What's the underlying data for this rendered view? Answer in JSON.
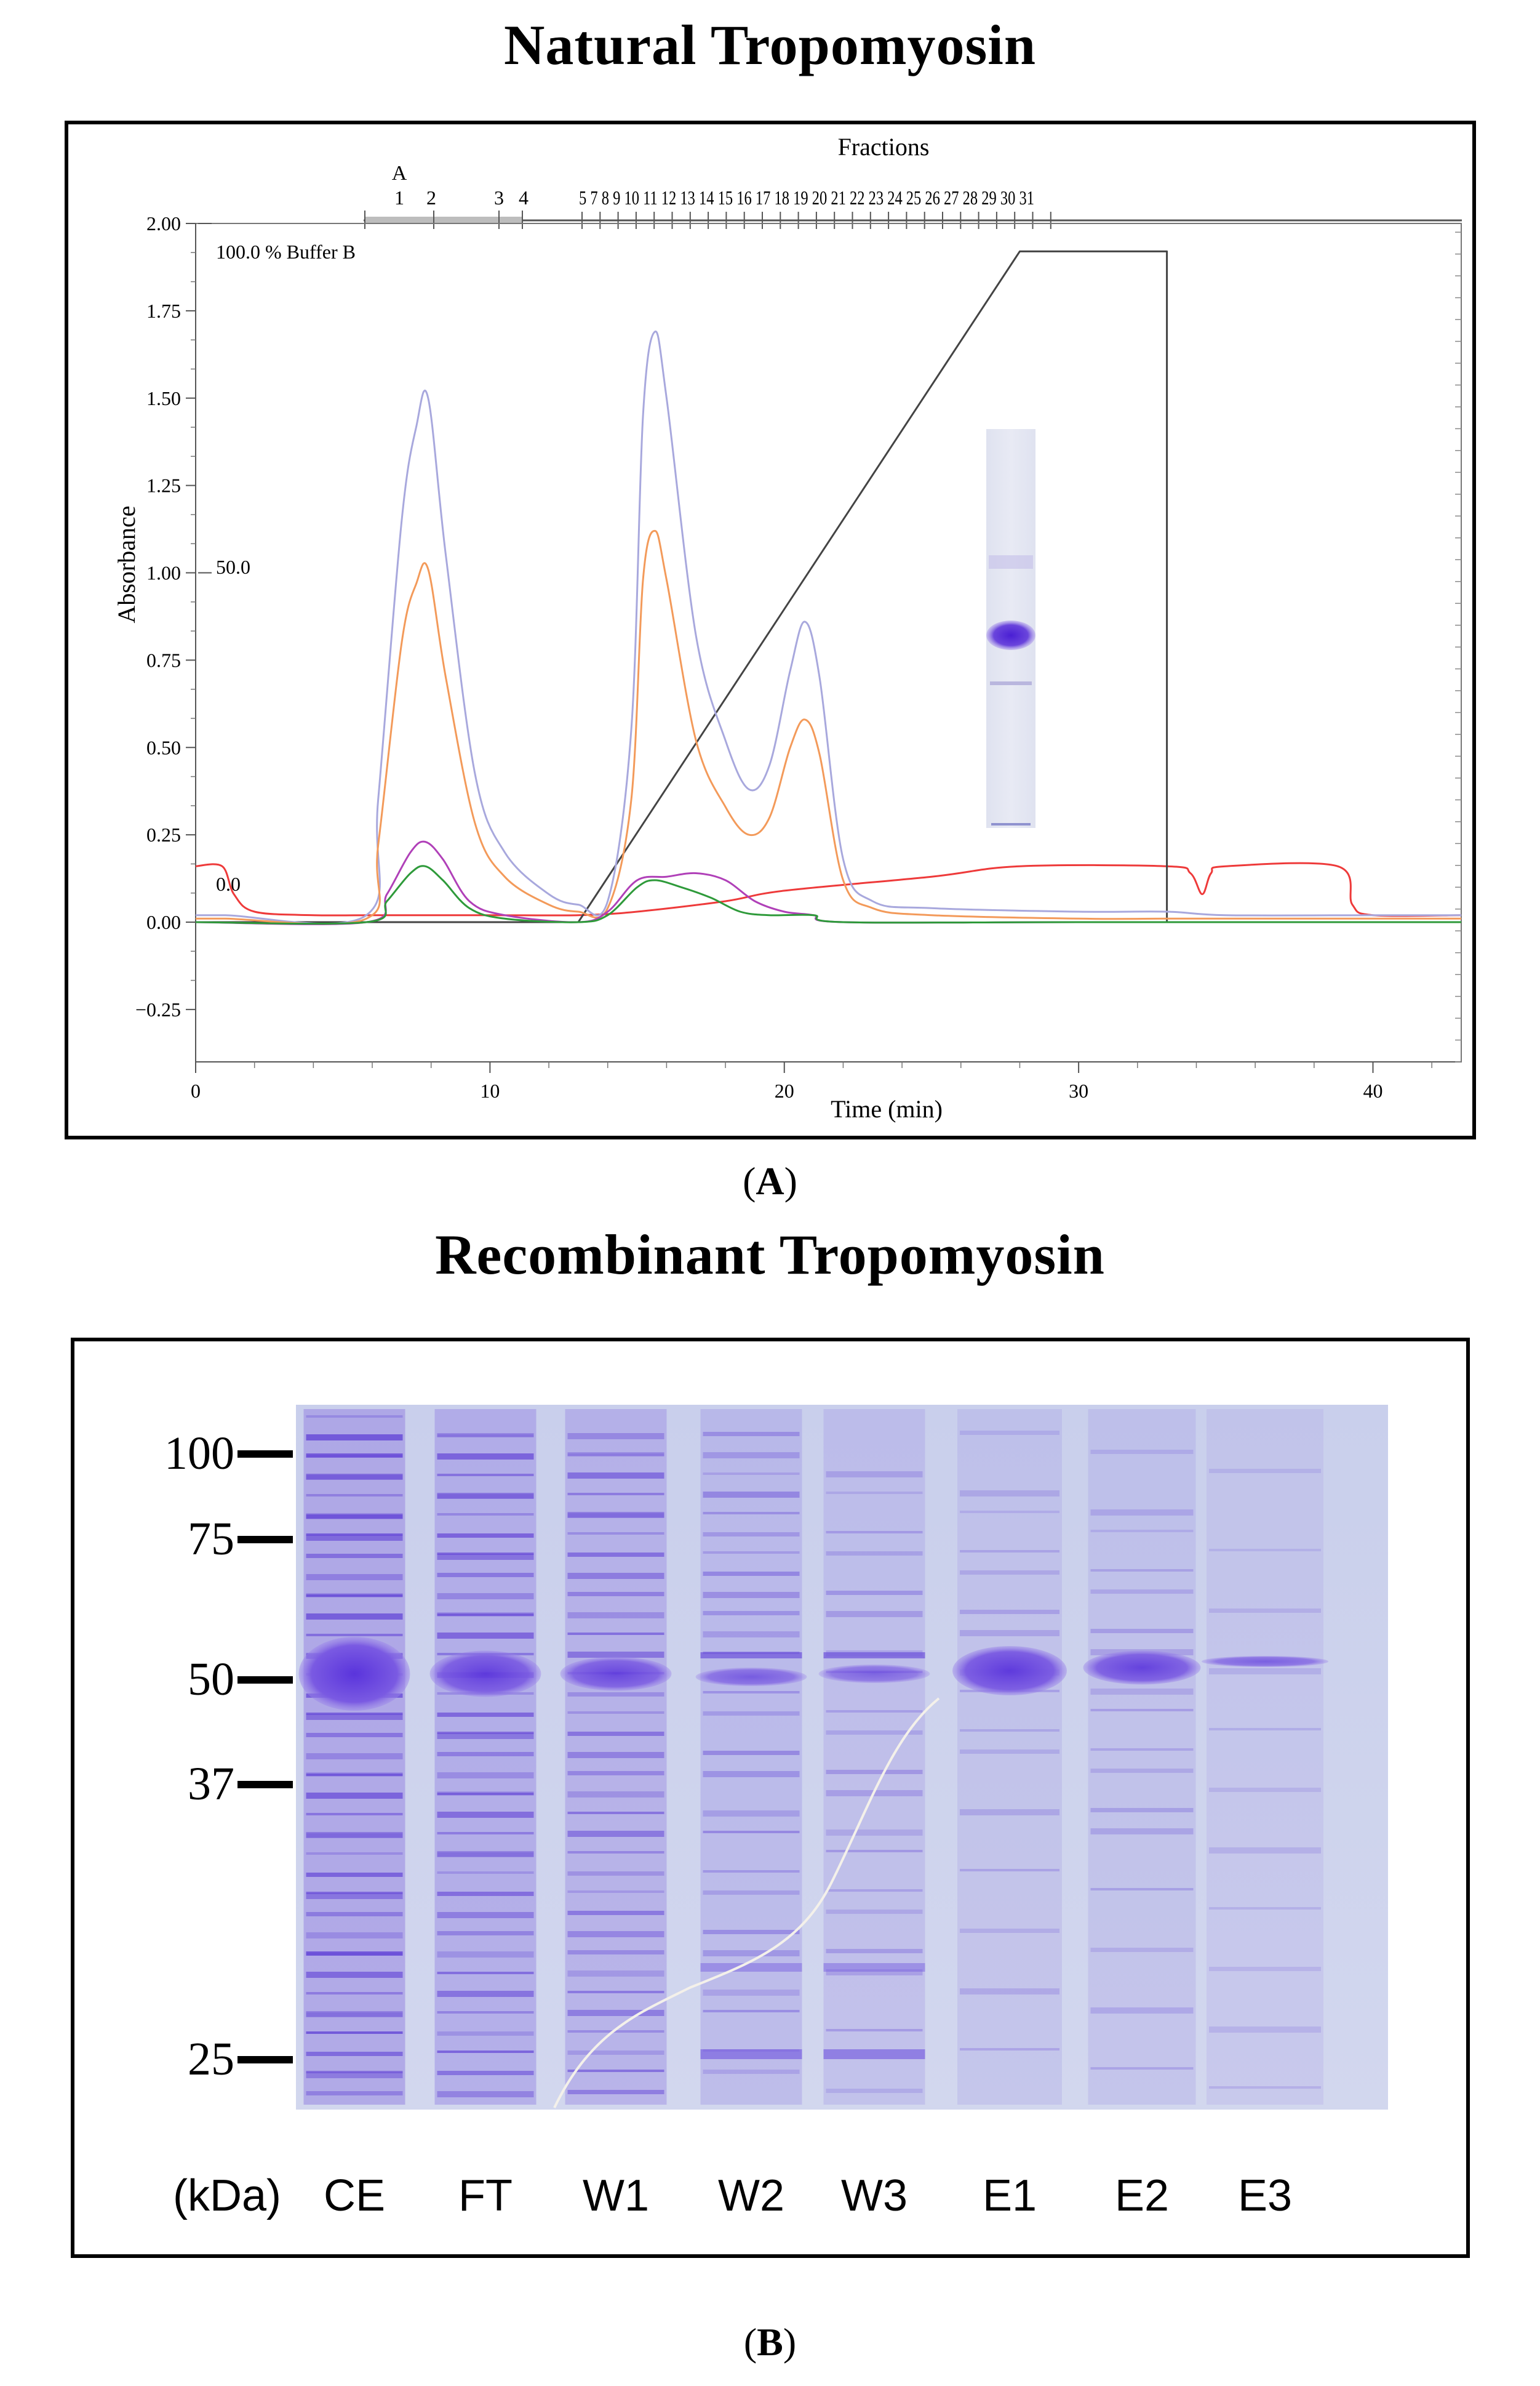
{
  "panel_a": {
    "title": "Natural Tropomyosin",
    "panel_label": "A",
    "fractions_label": "Fractions",
    "fractions_text": "5 7 8 9 10 11 12 13 14 15 16 17 18 19 20 21 22 23 24 25 26 27 28 29 30 31",
    "fraction_marker": "A",
    "fraction_numbers_early": [
      "1",
      "2",
      "3",
      "4"
    ],
    "buffer_label": "100.0 % Buffer B",
    "buffer_mid_label": "50.0",
    "buffer_zero_label": "0.0"
  },
  "panel_b": {
    "title": "Recombinant Tropomyosin",
    "panel_label": "B",
    "marker_unit": "(kDa)",
    "markers": [
      "100",
      "75",
      "50",
      "37",
      "25"
    ],
    "lanes": [
      "CE",
      "FT",
      "W1",
      "W2",
      "W3",
      "E1",
      "E2",
      "E3"
    ]
  },
  "colors": {
    "uv280": "#a8a8dd",
    "uv_orange": "#f39a5a",
    "magenta": "#b040b8",
    "green": "#2e9a3a",
    "red": "#ee3a3a",
    "gradient": "#444444",
    "gel_band": "#6f4fe0",
    "gel_bg": "#cdd3ec"
  },
  "chart_data": {
    "type": "line",
    "title": "Natural Tropomyosin",
    "xlabel": "Time (min)",
    "ylabel": "Absorbance",
    "xlim": [
      0,
      43
    ],
    "ylim": [
      -0.4,
      2.0
    ],
    "xticks": [
      0,
      10,
      20,
      30,
      40
    ],
    "yticks": [
      -0.25,
      0.0,
      0.25,
      0.5,
      0.75,
      1.0,
      1.25,
      1.5,
      1.75,
      2.0
    ],
    "xtick_labels": [
      "0",
      "10",
      "20",
      "30",
      "40"
    ],
    "ytick_labels": [
      "−0.25",
      "0.00",
      "0.25",
      "0.50",
      "0.75",
      "1.00",
      "1.25",
      "1.50",
      "1.75",
      "2.00"
    ],
    "series": [
      {
        "name": "Absorbance (lavender)",
        "color": "#a8a8dd",
        "width": 3,
        "x": [
          0,
          1,
          5.8,
          6.2,
          7,
          7.5,
          7.9,
          8.5,
          9.5,
          10.5,
          12,
          13,
          14,
          14.8,
          15.2,
          15.6,
          16,
          17,
          18,
          18.8,
          19.5,
          20.2,
          20.7,
          21.2,
          22,
          23,
          25,
          30,
          33,
          35,
          40,
          43
        ],
        "y": [
          0.02,
          0.02,
          0.02,
          0.35,
          1.15,
          1.42,
          1.5,
          1.05,
          0.42,
          0.2,
          0.08,
          0.05,
          0.06,
          0.55,
          1.45,
          1.69,
          1.5,
          0.82,
          0.52,
          0.38,
          0.45,
          0.72,
          0.86,
          0.7,
          0.18,
          0.06,
          0.04,
          0.03,
          0.03,
          0.02,
          0.02,
          0.02
        ]
      },
      {
        "name": "Absorbance (orange)",
        "color": "#f39a5a",
        "width": 3,
        "x": [
          0,
          1,
          5.8,
          6.2,
          7,
          7.5,
          7.9,
          8.5,
          9.5,
          10.5,
          12,
          13,
          14,
          14.8,
          15.2,
          15.6,
          16,
          17,
          18,
          18.8,
          19.5,
          20.2,
          20.7,
          21.2,
          22,
          23,
          25,
          30,
          33,
          35,
          40,
          43
        ],
        "y": [
          0.01,
          0.01,
          0.01,
          0.22,
          0.8,
          0.97,
          1.01,
          0.7,
          0.28,
          0.13,
          0.05,
          0.03,
          0.04,
          0.35,
          0.98,
          1.12,
          0.98,
          0.52,
          0.33,
          0.25,
          0.3,
          0.5,
          0.58,
          0.48,
          0.12,
          0.04,
          0.02,
          0.01,
          0.01,
          0.01,
          0.01,
          0.01
        ]
      },
      {
        "name": "Absorbance (magenta)",
        "color": "#b040b8",
        "width": 3,
        "x": [
          0,
          5.8,
          6.5,
          7.3,
          7.8,
          8.4,
          9.3,
          10.5,
          13,
          14,
          15,
          16,
          17,
          18,
          19,
          20,
          21,
          22,
          30,
          43
        ],
        "y": [
          0.0,
          0.0,
          0.08,
          0.2,
          0.23,
          0.18,
          0.06,
          0.02,
          0.0,
          0.03,
          0.12,
          0.13,
          0.14,
          0.12,
          0.06,
          0.03,
          0.02,
          0.0,
          0.0,
          0.0
        ]
      },
      {
        "name": "Absorbance (green)",
        "color": "#2e9a3a",
        "width": 3,
        "x": [
          0,
          5.8,
          6.5,
          7.3,
          7.8,
          8.4,
          9.3,
          10.5,
          13,
          14,
          15,
          15.6,
          16.5,
          17.5,
          18.5,
          19.5,
          21,
          22,
          30,
          43
        ],
        "y": [
          0.0,
          0.0,
          0.06,
          0.14,
          0.16,
          0.12,
          0.04,
          0.01,
          0.0,
          0.02,
          0.1,
          0.12,
          0.1,
          0.07,
          0.03,
          0.02,
          0.02,
          0.0,
          0.0,
          0.0
        ]
      },
      {
        "name": "Conductivity (red)",
        "color": "#ee3a3a",
        "width": 3,
        "x": [
          0,
          0.9,
          1.3,
          2,
          4,
          6,
          10,
          13,
          15,
          18,
          20,
          25,
          28,
          33,
          33.8,
          34.2,
          34.5,
          35,
          38.8,
          39.3,
          40,
          43
        ],
        "y": [
          0.16,
          0.16,
          0.08,
          0.03,
          0.02,
          0.02,
          0.02,
          0.02,
          0.03,
          0.06,
          0.09,
          0.13,
          0.16,
          0.16,
          0.14,
          0.08,
          0.14,
          0.16,
          0.16,
          0.05,
          0.02,
          0.02
        ]
      },
      {
        "name": "Gradient % Buffer B",
        "color": "#444444",
        "width": 3,
        "x": [
          0,
          13,
          28,
          33,
          33,
          43
        ],
        "y": [
          0.0,
          0.0,
          1.92,
          1.92,
          0.0,
          0.0
        ]
      }
    ]
  }
}
